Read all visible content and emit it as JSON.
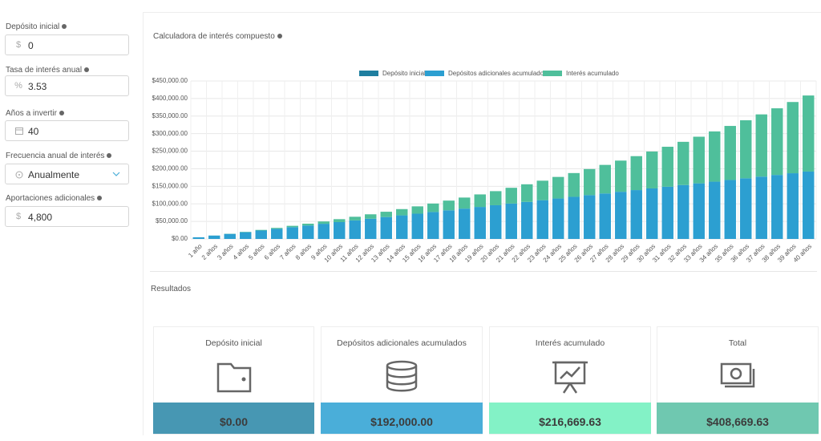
{
  "form": {
    "fields": [
      {
        "label": "Depósito inicial",
        "prefix": "$",
        "value": "0"
      },
      {
        "label": "Tasa de interés anual",
        "prefix": "%",
        "value": "3.53"
      },
      {
        "label": "Años a invertir",
        "value": "40"
      },
      {
        "label": "Frecuencia anual de interés",
        "value": "Anualmente"
      },
      {
        "label": "Aportaciones adicionales",
        "prefix": "$",
        "value": "4,800"
      }
    ]
  },
  "chart_data": {
    "type": "stacked-bar",
    "title": "Calculadora de interés compuesto",
    "categories": [
      "1 año",
      "2 años",
      "3 años",
      "4 años",
      "5 años",
      "6 años",
      "7 años",
      "8 años",
      "9 años",
      "10 años",
      "11 años",
      "12 años",
      "13 años",
      "14 años",
      "15 años",
      "16 años",
      "17 años",
      "18 años",
      "19 años",
      "20 años",
      "21 años",
      "22 años",
      "23 años",
      "24 años",
      "25 años",
      "26 años",
      "27 años",
      "28 años",
      "29 años",
      "30 años",
      "31 años",
      "32 años",
      "33 años",
      "34 años",
      "35 años",
      "36 años",
      "37 años",
      "38 años",
      "39 años",
      "40 años"
    ],
    "series": [
      {
        "name": "Depósito inicial",
        "color": "#1f7fa0",
        "values": [
          0,
          0,
          0,
          0,
          0,
          0,
          0,
          0,
          0,
          0,
          0,
          0,
          0,
          0,
          0,
          0,
          0,
          0,
          0,
          0,
          0,
          0,
          0,
          0,
          0,
          0,
          0,
          0,
          0,
          0,
          0,
          0,
          0,
          0,
          0,
          0,
          0,
          0,
          0,
          0
        ]
      },
      {
        "name": "Depósitos adicionales acumulados",
        "color": "#2c9fd1",
        "values": [
          4800,
          9600,
          14400,
          19200,
          24000,
          28800,
          33600,
          38400,
          43200,
          48000,
          52800,
          57600,
          62400,
          67200,
          72000,
          76800,
          81600,
          86400,
          91200,
          96000,
          100800,
          105600,
          110400,
          115200,
          120000,
          124800,
          129600,
          134400,
          139200,
          144000,
          148800,
          153600,
          158400,
          163200,
          168000,
          172800,
          177600,
          182400,
          187200,
          192000
        ]
      },
      {
        "name": "Interés acumulado",
        "color": "#4fbf9b",
        "values": [
          0,
          170,
          515,
          1042,
          1757,
          2667,
          3777,
          5096,
          6632,
          8391,
          10382,
          12612,
          15090,
          17826,
          20827,
          24105,
          27667,
          31523,
          35687,
          40166,
          44973,
          50118,
          55616,
          61476,
          67712,
          74338,
          81368,
          88816,
          96696,
          105023,
          113812,
          123083,
          132851,
          143132,
          153945,
          165310,
          177246,
          189772,
          202910,
          216670
        ]
      }
    ],
    "ylim": [
      0,
      450000
    ],
    "yticks": [
      {
        "value": 0,
        "label": "$0.00"
      },
      {
        "value": 50000,
        "label": "$50,000.00"
      },
      {
        "value": 100000,
        "label": "$100,000.00"
      },
      {
        "value": 150000,
        "label": "$150,000.00"
      },
      {
        "value": 200000,
        "label": "$200,000.00"
      },
      {
        "value": 250000,
        "label": "$250,000.00"
      },
      {
        "value": 300000,
        "label": "$300,000.00"
      },
      {
        "value": 350000,
        "label": "$350,000.00"
      },
      {
        "value": 400000,
        "label": "$400,000.00"
      },
      {
        "value": 450000,
        "label": "$450,000.00"
      }
    ],
    "grid": true,
    "legend": "top"
  },
  "results": {
    "title": "Resultados",
    "cards": [
      {
        "label": "Depósito inicial",
        "value": "$0.00",
        "color": "#4797b3"
      },
      {
        "label": "Depósitos adicionales acumulados",
        "value": "$192,000.00",
        "color": "#4aaed9"
      },
      {
        "label": "Interés acumulado",
        "value": "$216,669.63",
        "color": "#83f2c6"
      },
      {
        "label": "Total",
        "value": "$408,669.63",
        "color": "#6fc8b0"
      }
    ]
  }
}
